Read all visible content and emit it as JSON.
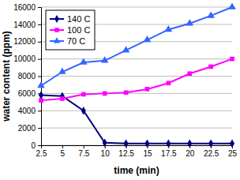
{
  "chart_data": {
    "type": "line",
    "x_label": "time (min)",
    "y_label": "water content (ppm)",
    "x": [
      2.5,
      5,
      7.5,
      10,
      12.5,
      15,
      17.5,
      20,
      22.5,
      25
    ],
    "xlim": [
      2.5,
      25
    ],
    "xticks": [
      2.5,
      5,
      7.5,
      10,
      12.5,
      15,
      17.5,
      20,
      22.5,
      25
    ],
    "ylim": [
      0,
      16000
    ],
    "yticks": [
      0,
      2000,
      4000,
      6000,
      8000,
      10000,
      12000,
      14000,
      16000
    ],
    "grid": true,
    "legend": "top-left",
    "series": [
      {
        "name": "140 C",
        "color": "#000080",
        "marker": "diamond",
        "line_style": "solid",
        "values": [
          5800,
          5700,
          4000,
          300,
          200,
          200,
          200,
          200,
          200,
          200
        ]
      },
      {
        "name": "100 C",
        "color": "#ff00ff",
        "marker": "square",
        "line_style": "solid",
        "values": [
          5200,
          5400,
          5900,
          6000,
          6100,
          6500,
          7200,
          8300,
          9100,
          10000
        ]
      },
      {
        "name": "70 C",
        "color": "#3366ff",
        "marker": "triangle",
        "line_style": "solid",
        "values": [
          6900,
          8500,
          9600,
          9800,
          11000,
          12200,
          13400,
          14100,
          15000,
          16000
        ]
      }
    ]
  }
}
